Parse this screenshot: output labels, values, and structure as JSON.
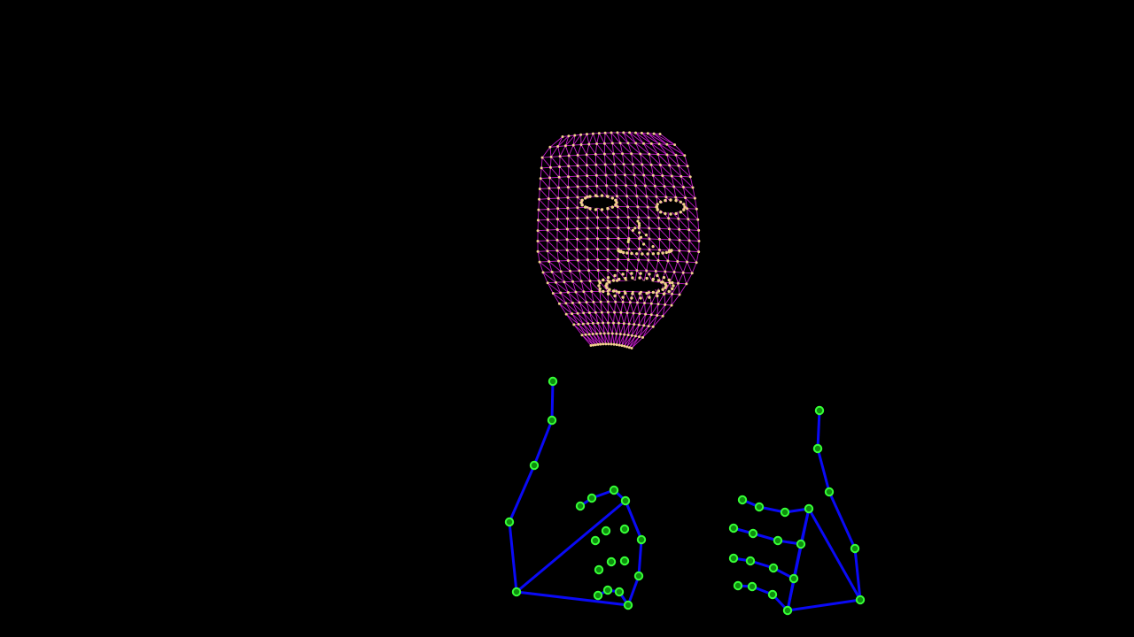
{
  "scene": {
    "background": "#000000",
    "description_visible_text": ""
  },
  "colors": {
    "face_mesh_line": "#d81fe0",
    "face_mesh_point": "#f2d28c",
    "hand_bone": "#0a0af5",
    "hand_joint_fill": "#0d8f0d",
    "hand_joint_ring": "#37ff37"
  },
  "overlays": {
    "face": "face-mesh-landmarks",
    "left_hand": "hand-landmarks",
    "right_hand": "hand-landmarks"
  }
}
